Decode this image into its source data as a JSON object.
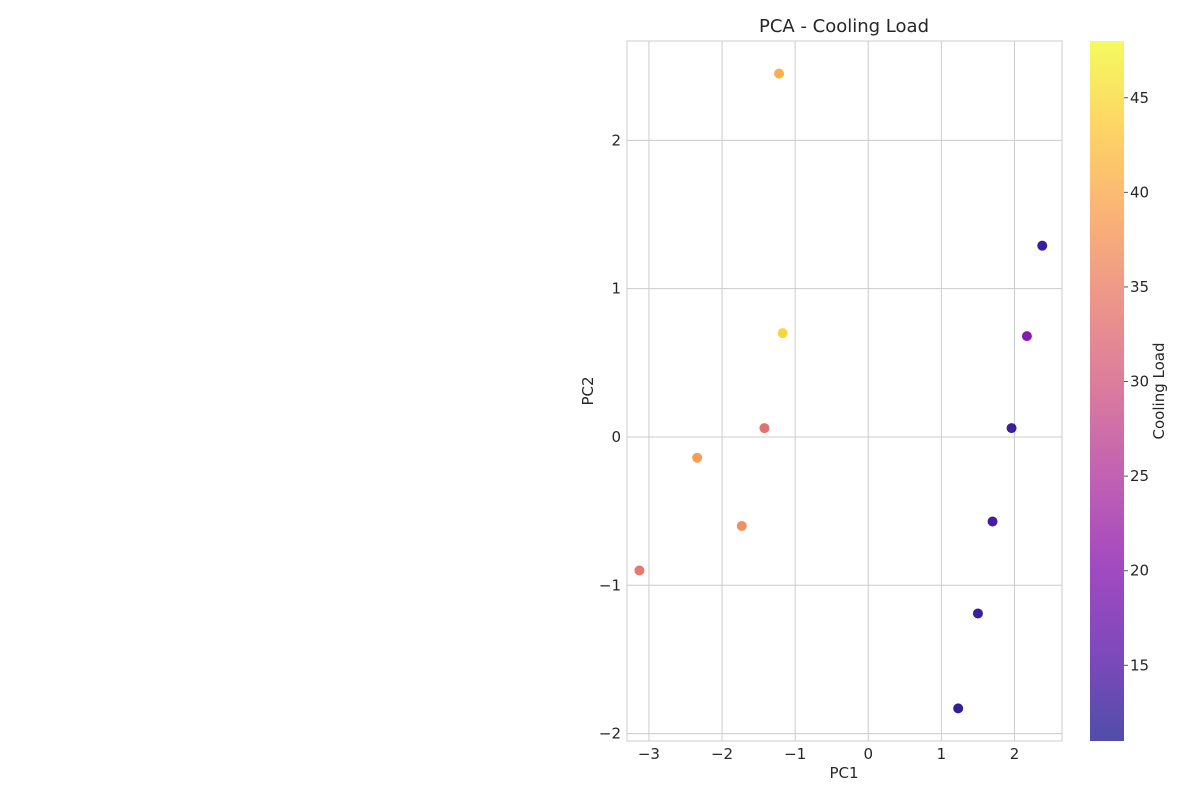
{
  "chart_data": {
    "type": "scatter",
    "title": "PCA - Cooling Load",
    "xlabel": "PC1",
    "ylabel": "PC2",
    "xlim": [
      -3.3,
      2.65
    ],
    "ylim": [
      -2.05,
      2.67
    ],
    "xticks": [
      -3,
      -2,
      -1,
      0,
      1,
      2
    ],
    "yticks": [
      -2,
      -1,
      0,
      1,
      2
    ],
    "grid": true,
    "points": [
      {
        "x": -1.22,
        "y": 2.45,
        "value": 40.5
      },
      {
        "x": 2.38,
        "y": 1.29,
        "value": 12.5
      },
      {
        "x": -1.17,
        "y": 0.7,
        "value": 44.5
      },
      {
        "x": 2.17,
        "y": 0.68,
        "value": 19.5
      },
      {
        "x": -1.42,
        "y": 0.06,
        "value": 33.0
      },
      {
        "x": 1.96,
        "y": 0.06,
        "value": 13.0
      },
      {
        "x": -2.34,
        "y": -0.14,
        "value": 38.5
      },
      {
        "x": -1.73,
        "y": -0.6,
        "value": 37.0
      },
      {
        "x": 1.7,
        "y": -0.57,
        "value": 13.5
      },
      {
        "x": -3.13,
        "y": -0.9,
        "value": 34.0
      },
      {
        "x": 1.5,
        "y": -1.19,
        "value": 12.5
      },
      {
        "x": 1.23,
        "y": -1.83,
        "value": 12.0
      }
    ],
    "colorbar": {
      "label": "Cooling Load",
      "colormap": "plasma",
      "vmin": 11.0,
      "vmax": 48.0,
      "ticks": [
        15,
        20,
        25,
        30,
        35,
        40,
        45
      ]
    }
  }
}
